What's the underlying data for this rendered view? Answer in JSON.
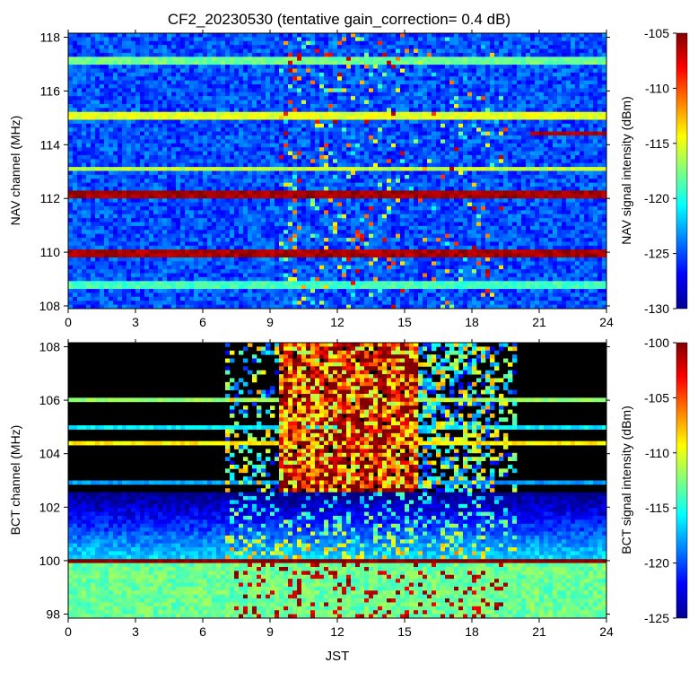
{
  "chart_data": {
    "title": "CF2_20230530 (tentative gain_correction=  0.4 dB)",
    "xlabel": "JST",
    "panels": [
      {
        "id": "nav",
        "type": "heatmap",
        "ylabel": "NAV channel (MHz)",
        "colorbar_label": "NAV signal intensity (dBm)",
        "xlim": [
          0,
          24
        ],
        "ylim": [
          107.9,
          118.15
        ],
        "x_ticks": [
          "0",
          "3",
          "6",
          "9",
          "12",
          "15",
          "18",
          "21",
          "24"
        ],
        "y_ticks": [
          "108",
          "110",
          "112",
          "114",
          "116",
          "118"
        ],
        "clim": [
          -130,
          -105
        ],
        "colorbar_ticks": [
          "-105",
          "-110",
          "-115",
          "-120",
          "-125",
          "-130"
        ],
        "background_dbm": -125,
        "activity_window_jst": [
          9.5,
          19.5
        ],
        "persistent_bands": [
          {
            "mhz": 110.0,
            "dbm": -106,
            "span": [
              0,
              24
            ]
          },
          {
            "mhz": 112.2,
            "dbm": -106,
            "span": [
              0,
              24
            ]
          },
          {
            "mhz": 115.1,
            "dbm": -115,
            "span": [
              0,
              24
            ]
          },
          {
            "mhz": 117.1,
            "dbm": -118,
            "span": [
              0,
              24
            ]
          },
          {
            "mhz": 113.1,
            "dbm": -116,
            "span": [
              0,
              24
            ]
          },
          {
            "mhz": 108.8,
            "dbm": -119,
            "span": [
              0,
              24
            ]
          },
          {
            "mhz": 114.4,
            "dbm": -106,
            "span": [
              20.7,
              24
            ]
          }
        ]
      },
      {
        "id": "bct",
        "type": "heatmap",
        "ylabel": "BCT channel (MHz)",
        "colorbar_label": "BCT signal intensity (dBm)",
        "xlim": [
          0,
          24
        ],
        "ylim": [
          97.85,
          108.15
        ],
        "x_ticks": [
          "0",
          "3",
          "6",
          "9",
          "12",
          "15",
          "18",
          "21",
          "24"
        ],
        "y_ticks": [
          "98",
          "100",
          "102",
          "104",
          "106",
          "108"
        ],
        "clim": [
          -125,
          -100
        ],
        "colorbar_ticks": [
          "-100",
          "-105",
          "-110",
          "-115",
          "-120",
          "-125"
        ],
        "no_signal_region_mhz": [
          102.5,
          108.15
        ],
        "daytime_activity_jst": [
          7,
          20
        ],
        "peak_activity_jst": [
          9.5,
          15.5
        ],
        "persistent_bands": [
          {
            "mhz": 100.0,
            "dbm": -100,
            "span": [
              0,
              24
            ]
          },
          {
            "mhz": 105.0,
            "dbm": -116,
            "span": [
              0,
              24
            ]
          },
          {
            "mhz": 106.0,
            "dbm": -112,
            "span": [
              0,
              24
            ]
          },
          {
            "mhz": 104.4,
            "dbm": -109,
            "span": [
              0,
              24
            ]
          },
          {
            "mhz": 102.9,
            "dbm": -118,
            "span": [
              0,
              24
            ]
          }
        ]
      }
    ]
  }
}
